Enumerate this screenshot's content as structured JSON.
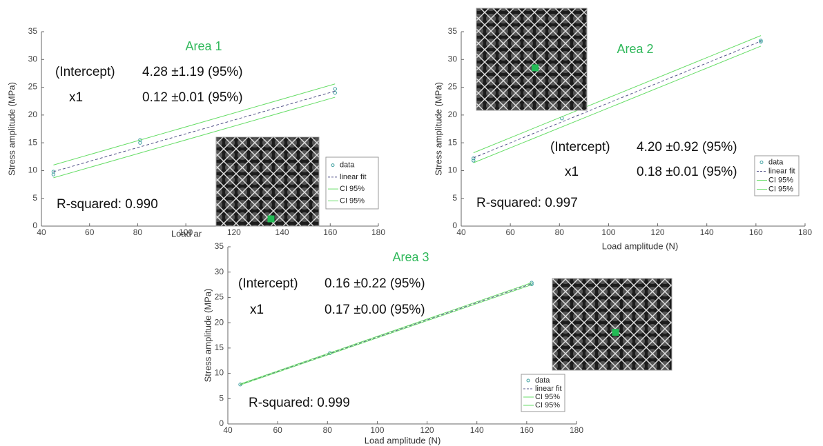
{
  "chart_data": [
    {
      "type": "line",
      "title": "Area 1",
      "xlabel": "Load ar",
      "ylabel": "Stress amplitude (MPa)",
      "xlim": [
        40,
        180
      ],
      "xticks": [
        40,
        60,
        80,
        100,
        120,
        140,
        160,
        180
      ],
      "ylim": [
        0,
        35
      ],
      "yticks": [
        0,
        5,
        10,
        15,
        20,
        25,
        30,
        35
      ],
      "intercept_label": "(Intercept)",
      "intercept_value": "4.28 ±1.19 (95%)",
      "x1_label": "x1",
      "x1_value": "0.12 ±0.01 (95%)",
      "r_squared": "R-squared: 0.990",
      "series": [
        {
          "name": "data",
          "color": "#3fa0a0",
          "style": "markers",
          "x": [
            45,
            45,
            81,
            81,
            162,
            162
          ],
          "values": [
            9.3,
            9.8,
            15.0,
            15.5,
            24.0,
            24.7
          ]
        },
        {
          "name": "linear fit",
          "color": "#55558a",
          "style": "dashed",
          "x": [
            45,
            162
          ],
          "values": [
            9.8,
            24.3
          ]
        },
        {
          "name": "CI 95%",
          "color": "#66dd66",
          "style": "solid",
          "x": [
            45,
            162
          ],
          "values": [
            11.0,
            25.6
          ]
        },
        {
          "name": "CI 95%",
          "color": "#66dd66",
          "style": "solid",
          "x": [
            45,
            162
          ],
          "values": [
            8.7,
            23.2
          ]
        }
      ]
    },
    {
      "type": "line",
      "title": "Area 2",
      "xlabel": "Load amplitude (N)",
      "ylabel": "Stress amplitude (MPa)",
      "xlim": [
        40,
        180
      ],
      "xticks": [
        40,
        60,
        80,
        100,
        120,
        140,
        160,
        180
      ],
      "ylim": [
        0,
        35
      ],
      "yticks": [
        0,
        5,
        10,
        15,
        20,
        25,
        30,
        35
      ],
      "intercept_label": "(Intercept)",
      "intercept_value": "4.20 ±0.92 (95%)",
      "x1_label": "x1",
      "x1_value": "0.18 ±0.01 (95%)",
      "r_squared": "R-squared: 0.997",
      "series": [
        {
          "name": "data",
          "color": "#3fa0a0",
          "style": "markers",
          "x": [
            45,
            45,
            81,
            162,
            162
          ],
          "values": [
            11.8,
            12.2,
            19.4,
            33.2,
            33.4
          ]
        },
        {
          "name": "linear fit",
          "color": "#55558a",
          "style": "dashed",
          "x": [
            45,
            162
          ],
          "values": [
            12.3,
            33.3
          ]
        },
        {
          "name": "CI 95%",
          "color": "#66dd66",
          "style": "solid",
          "x": [
            45,
            162
          ],
          "values": [
            13.2,
            34.3
          ]
        },
        {
          "name": "CI 95%",
          "color": "#66dd66",
          "style": "solid",
          "x": [
            45,
            162
          ],
          "values": [
            11.4,
            32.4
          ]
        }
      ]
    },
    {
      "type": "line",
      "title": "Area 3",
      "xlabel": "Load amplitude (N)",
      "ylabel": "Stress amplitude (MPa)",
      "xlim": [
        40,
        180
      ],
      "xticks": [
        40,
        60,
        80,
        100,
        120,
        140,
        160,
        180
      ],
      "ylim": [
        0,
        35
      ],
      "yticks": [
        0,
        5,
        10,
        15,
        20,
        25,
        30,
        35
      ],
      "intercept_label": "(Intercept)",
      "intercept_value": "0.16 ±0.22 (95%)",
      "x1_label": "x1",
      "x1_value": "0.17 ±0.00 (95%)",
      "r_squared": "R-squared: 0.999",
      "series": [
        {
          "name": "data",
          "color": "#3fa0a0",
          "style": "markers",
          "x": [
            45,
            81,
            162,
            162
          ],
          "values": [
            7.8,
            14.0,
            27.6,
            27.9
          ]
        },
        {
          "name": "linear fit",
          "color": "#55558a",
          "style": "dashed",
          "x": [
            45,
            162
          ],
          "values": [
            7.8,
            27.7
          ]
        },
        {
          "name": "CI 95%",
          "color": "#66dd66",
          "style": "solid",
          "x": [
            45,
            162
          ],
          "values": [
            7.9,
            27.9
          ]
        },
        {
          "name": "CI 95%",
          "color": "#66dd66",
          "style": "solid",
          "x": [
            45,
            162
          ],
          "values": [
            7.7,
            27.5
          ]
        }
      ]
    }
  ]
}
